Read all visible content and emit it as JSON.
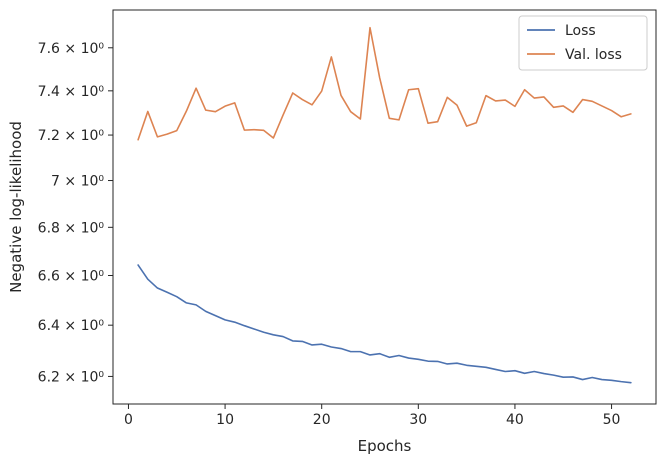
{
  "chart_data": {
    "type": "line",
    "xlabel": "Epochs",
    "ylabel": "Negative log-likelihood",
    "xlim": [
      -1.6,
      54.6
    ],
    "ylim": [
      6.095,
      7.78
    ],
    "yscale": "log",
    "grid": false,
    "legend_position": "top-right",
    "x_ticks": [
      0,
      10,
      20,
      30,
      40,
      50
    ],
    "x_tick_labels": [
      "0",
      "10",
      "20",
      "30",
      "40",
      "50"
    ],
    "y_ticks": [
      6.2,
      6.4,
      6.6,
      6.8,
      7.0,
      7.2,
      7.4,
      7.6
    ],
    "y_tick_labels": [
      "6.2 × 10⁰",
      "6.4 × 10⁰",
      "6.6 × 10⁰",
      "6.8 × 10⁰",
      "7 × 10⁰",
      "7.2 × 10⁰",
      "7.4 × 10⁰",
      "7.6 × 10⁰"
    ],
    "x": [
      1,
      2,
      3,
      4,
      5,
      6,
      7,
      8,
      9,
      10,
      11,
      12,
      13,
      14,
      15,
      16,
      17,
      18,
      19,
      20,
      21,
      22,
      23,
      24,
      25,
      26,
      27,
      28,
      29,
      30,
      31,
      32,
      33,
      34,
      35,
      36,
      37,
      38,
      39,
      40,
      41,
      42,
      43,
      44,
      45,
      46,
      47,
      48,
      49,
      50,
      51,
      52
    ],
    "series": [
      {
        "name": "Loss",
        "color": "#4c72b0",
        "values": [
          6.643,
          6.585,
          6.549,
          6.532,
          6.514,
          6.489,
          6.481,
          6.455,
          6.438,
          6.421,
          6.412,
          6.398,
          6.385,
          6.372,
          6.362,
          6.355,
          6.338,
          6.336,
          6.322,
          6.325,
          6.314,
          6.308,
          6.296,
          6.296,
          6.283,
          6.288,
          6.274,
          6.281,
          6.271,
          6.266,
          6.259,
          6.258,
          6.248,
          6.251,
          6.243,
          6.239,
          6.235,
          6.227,
          6.219,
          6.222,
          6.212,
          6.219,
          6.211,
          6.205,
          6.197,
          6.198,
          6.188,
          6.196,
          6.188,
          6.185,
          6.18,
          6.176
        ]
      },
      {
        "name": "Val. loss",
        "color": "#dd8452",
        "values": [
          7.179,
          7.306,
          7.192,
          7.204,
          7.22,
          7.308,
          7.412,
          7.312,
          7.305,
          7.33,
          7.345,
          7.222,
          7.224,
          7.221,
          7.187,
          7.29,
          7.39,
          7.36,
          7.336,
          7.399,
          7.557,
          7.379,
          7.305,
          7.272,
          7.695,
          7.46,
          7.275,
          7.268,
          7.405,
          7.41,
          7.253,
          7.26,
          7.37,
          7.335,
          7.24,
          7.255,
          7.378,
          7.354,
          7.358,
          7.329,
          7.405,
          7.367,
          7.372,
          7.325,
          7.331,
          7.302,
          7.36,
          7.352,
          7.331,
          7.31,
          7.282,
          7.295
        ]
      }
    ]
  }
}
